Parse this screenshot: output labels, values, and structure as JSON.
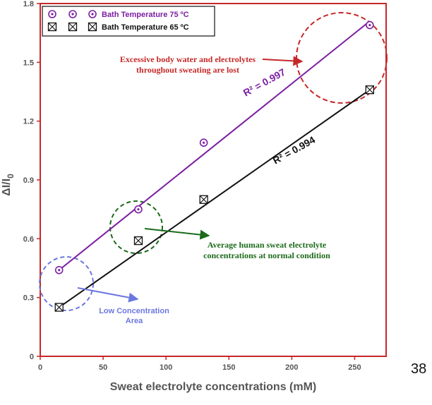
{
  "page_number": "38",
  "colors": {
    "frame": "#c62828",
    "series75": "#7b1fa2",
    "series65": "#111111",
    "annot_red": "#c62828",
    "annot_green": "#1b6b1b",
    "annot_blue": "#6b77e0",
    "tick_text": "#555555"
  },
  "chart_data": {
    "type": "scatter",
    "xlabel": "Sweat electrolyte concentrations (mM)",
    "ylabel": "ΔI/I",
    "ylabel_sub": "0",
    "xlim": [
      0,
      275
    ],
    "ylim": [
      0,
      1.8
    ],
    "xticks": [
      0,
      50,
      100,
      150,
      200,
      250
    ],
    "yticks": [
      0,
      0.3,
      0.6,
      0.9,
      1.2,
      1.5,
      1.8
    ],
    "ytick_labels": [
      "0",
      "0.3",
      "0.6",
      "0.9",
      "1.2",
      "1.5",
      "1.8"
    ],
    "legend_position": "top-left",
    "series": [
      {
        "name": "Bath Temperature 75 ºC",
        "marker": "circle-dot",
        "x": [
          15,
          78,
          130,
          262
        ],
        "y": [
          0.44,
          0.75,
          1.09,
          1.69
        ],
        "fit_x": [
          15,
          262
        ],
        "fit_y": [
          0.44,
          1.71
        ],
        "r2_label": "R² = 0.997"
      },
      {
        "name": "Bath Temperature 65 ºC",
        "marker": "square-x",
        "x": [
          15,
          78,
          130,
          262
        ],
        "y": [
          0.25,
          0.59,
          0.8,
          1.36
        ],
        "fit_x": [
          15,
          262
        ],
        "fit_y": [
          0.25,
          1.36
        ],
        "r2_label": "R² = 0.994"
      }
    ],
    "annotations": [
      {
        "lines": [
          "Excessive body water and electrolytes",
          "throughout sweating are lost"
        ],
        "color": "red"
      },
      {
        "lines": [
          "Average human sweat electrolyte",
          "concentrations at normal condition"
        ],
        "color": "green"
      },
      {
        "lines": [
          "Low Concentration",
          "Area"
        ],
        "color": "blue"
      }
    ]
  }
}
